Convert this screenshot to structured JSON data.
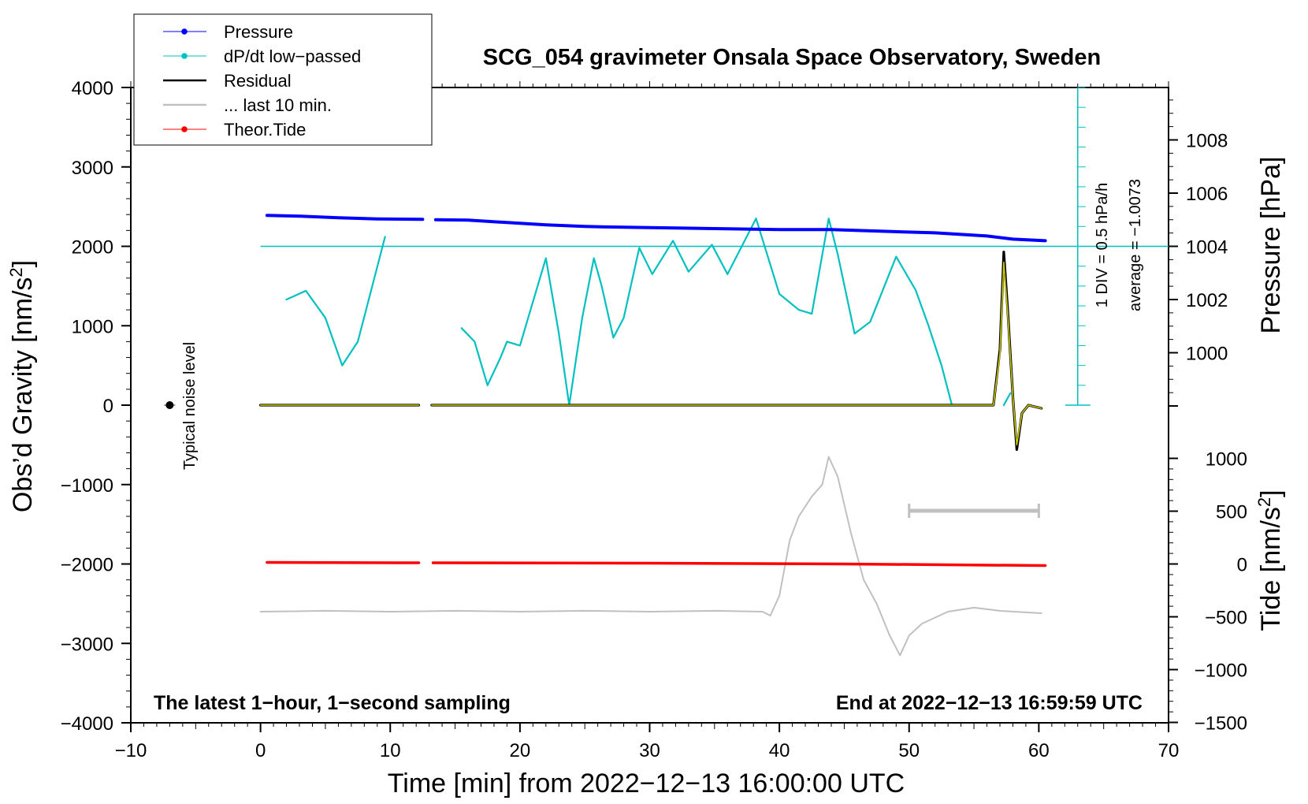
{
  "chart_data": {
    "type": "line",
    "title": "SCG_054 gravimeter Onsala Space Observatory, Sweden",
    "xlabel": "Time [min] from 2022−12−13 16:00:00 UTC",
    "ylabel_left": "Obs’d Gravity [nm/s²]",
    "ylabel_left_main": "Obs’d Gravity [nm/s",
    "ylabel_left_sup": "2",
    "ylabel_left_end": "]",
    "ylabel_pressure": "Pressure [hPa]",
    "ylabel_tide_main": "Tide [nm/s",
    "ylabel_tide_sup": "2",
    "ylabel_tide_end": "]",
    "xlim": [
      -10,
      70
    ],
    "ylim": [
      -4000,
      4000
    ],
    "x_ticks": [
      -10,
      0,
      10,
      20,
      30,
      40,
      50,
      60,
      70
    ],
    "x_tick_labels": [
      "−10",
      "0",
      "10",
      "20",
      "30",
      "40",
      "50",
      "60",
      "70"
    ],
    "y_ticks": [
      4000,
      3000,
      2000,
      1000,
      0,
      -1000,
      -2000,
      -3000,
      -4000
    ],
    "y_tick_labels": [
      "4000",
      "3000",
      "2000",
      "1000",
      "0",
      "−1000",
      "−2000",
      "−3000",
      "−4000"
    ],
    "pressure_axis": {
      "ticks": [
        1008,
        1006,
        1004,
        1002,
        1000
      ],
      "tick_labels": [
        "1008",
        "1006",
        "1004",
        "1002",
        "1000"
      ],
      "gravity_at_1004": 2000,
      "gravity_per_hpa": 335
    },
    "tide_axis": {
      "ticks": [
        1000,
        500,
        0,
        -500,
        -1000,
        -1500
      ],
      "tick_labels": [
        "1000",
        "500",
        "0",
        "−500",
        "−1000",
        "−1500"
      ],
      "gravity_at_0": -2000,
      "gravity_per_nms2": 1.33
    },
    "legend": [
      {
        "label": "Pressure",
        "color": "#0000ff",
        "marker": "dot"
      },
      {
        "label": "dP/dt low−passed",
        "color": "#00c0c0",
        "marker": "dot"
      },
      {
        "label": "Residual",
        "color": "#000000",
        "marker": "none"
      },
      {
        "label": "... last 10 min.",
        "color": "#c0c0c0",
        "marker": "none"
      },
      {
        "label": "Theor.Tide",
        "color": "#ff0000",
        "marker": "dot"
      }
    ],
    "annotations": {
      "left_bottom": "The latest 1−hour, 1−second sampling",
      "right_bottom": "End at 2022−12−13 16:59:59 UTC",
      "noise": "Typical noise level",
      "div": "1 DIV = 0.5 hPa/h",
      "average": "average = −1.0073"
    },
    "noise_point": {
      "x": -7,
      "y": 0
    },
    "scale_bar": {
      "x_start": 50,
      "x_end": 60,
      "y": -1330
    },
    "dpdt_baseline_y": 2000,
    "dpdt_axis": {
      "x": 63,
      "y_top": 4000,
      "y_bottom": 0,
      "divisions": 16
    },
    "series": [
      {
        "name": "Pressure",
        "color": "#0000ff",
        "segments": [
          [
            [
              0.5,
              2390
            ],
            [
              3,
              2380
            ],
            [
              6,
              2360
            ],
            [
              9,
              2345
            ],
            [
              12.5,
              2340
            ]
          ],
          [
            [
              13.5,
              2335
            ],
            [
              16,
              2330
            ],
            [
              19,
              2300
            ],
            [
              22,
              2270
            ],
            [
              25,
              2250
            ],
            [
              28,
              2240
            ],
            [
              32,
              2230
            ],
            [
              36,
              2220
            ],
            [
              40,
              2210
            ],
            [
              44,
              2210
            ],
            [
              48,
              2190
            ],
            [
              52,
              2170
            ],
            [
              56,
              2130
            ],
            [
              58,
              2090
            ],
            [
              60.5,
              2070
            ]
          ]
        ]
      },
      {
        "name": "dP/dt low-passed",
        "color": "#00c0c0",
        "segments": [
          [
            [
              2,
              1330
            ],
            [
              3.5,
              1440
            ],
            [
              5,
              1100
            ],
            [
              6.3,
              500
            ],
            [
              7.5,
              800
            ],
            [
              9.6,
              2120
            ]
          ],
          [
            [
              15.5,
              970
            ],
            [
              16.5,
              800
            ],
            [
              17.5,
              250
            ],
            [
              18.5,
              600
            ],
            [
              19,
              800
            ],
            [
              20,
              750
            ],
            [
              21,
              1300
            ],
            [
              22,
              1850
            ],
            [
              23,
              900
            ],
            [
              23.8,
              0
            ],
            [
              24.8,
              1100
            ],
            [
              25.7,
              1850
            ],
            [
              26.3,
              1500
            ],
            [
              27.2,
              850
            ],
            [
              28,
              1100
            ],
            [
              29.2,
              1980
            ],
            [
              30.2,
              1650
            ],
            [
              31.8,
              2070
            ],
            [
              33,
              1680
            ],
            [
              34.8,
              2020
            ],
            [
              36,
              1650
            ],
            [
              38.2,
              2350
            ],
            [
              40,
              1400
            ],
            [
              41.5,
              1200
            ],
            [
              42.5,
              1150
            ],
            [
              43.8,
              2350
            ],
            [
              44.5,
              1900
            ],
            [
              45.8,
              900
            ],
            [
              47,
              1050
            ],
            [
              49,
              1870
            ],
            [
              50.5,
              1450
            ],
            [
              51.5,
              1000
            ],
            [
              52.5,
              500
            ],
            [
              53.3,
              0
            ]
          ],
          [
            [
              57.3,
              0
            ],
            [
              57.8,
              150
            ]
          ]
        ]
      },
      {
        "name": "Residual",
        "color": "#000000",
        "segments": [
          [
            [
              0,
              0
            ],
            [
              12.2,
              0
            ]
          ],
          [
            [
              13.2,
              0
            ],
            [
              56.5,
              0
            ],
            [
              57,
              700
            ],
            [
              57.3,
              1930
            ],
            [
              57.6,
              1200
            ],
            [
              58,
              100
            ],
            [
              58.3,
              -560
            ],
            [
              58.7,
              -100
            ],
            [
              59.2,
              0
            ],
            [
              60.2,
              -40
            ]
          ]
        ]
      },
      {
        "name": "Fit (yellow)",
        "color": "#c8c800",
        "segments": [
          [
            [
              0,
              0
            ],
            [
              12.2,
              0
            ]
          ],
          [
            [
              13.2,
              0
            ],
            [
              56.5,
              0
            ],
            [
              57,
              650
            ],
            [
              57.3,
              1800
            ],
            [
              57.6,
              1150
            ],
            [
              58,
              100
            ],
            [
              58.3,
              -500
            ],
            [
              58.7,
              -100
            ],
            [
              59.2,
              0
            ],
            [
              60.2,
              -40
            ]
          ]
        ]
      },
      {
        "name": "... last 10 min.",
        "color": "#c0c0c0",
        "segments": [
          [
            [
              0,
              -2600
            ],
            [
              5,
              -2590
            ],
            [
              10,
              -2600
            ],
            [
              15,
              -2590
            ],
            [
              20,
              -2600
            ],
            [
              25,
              -2590
            ],
            [
              30,
              -2600
            ],
            [
              35,
              -2590
            ],
            [
              38.7,
              -2600
            ],
            [
              39.3,
              -2650
            ],
            [
              40,
              -2400
            ],
            [
              40.8,
              -1700
            ],
            [
              41.5,
              -1400
            ],
            [
              42.5,
              -1150
            ],
            [
              43.3,
              -1000
            ],
            [
              43.8,
              -650
            ],
            [
              44.5,
              -900
            ],
            [
              45.5,
              -1600
            ],
            [
              46.5,
              -2200
            ],
            [
              47.5,
              -2500
            ],
            [
              48.5,
              -2900
            ],
            [
              49.3,
              -3150
            ],
            [
              50,
              -2900
            ],
            [
              51,
              -2750
            ],
            [
              53,
              -2600
            ],
            [
              55,
              -2550
            ],
            [
              57,
              -2590
            ],
            [
              60.2,
              -2620
            ]
          ]
        ]
      },
      {
        "name": "Theor.Tide",
        "color": "#ff0000",
        "segments": [
          [
            [
              0.5,
              -1980
            ],
            [
              12.2,
              -1985
            ]
          ],
          [
            [
              13.3,
              -1985
            ],
            [
              30,
              -1990
            ],
            [
              45,
              -2000
            ],
            [
              60.5,
              -2020
            ]
          ]
        ]
      }
    ]
  }
}
